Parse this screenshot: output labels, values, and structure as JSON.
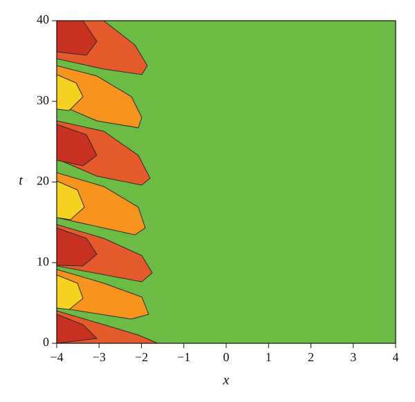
{
  "chart_data": {
    "type": "contour",
    "x_label": "x",
    "y_label": "t",
    "xlim": [
      -4,
      4
    ],
    "ylim": [
      0,
      40
    ],
    "xticks": [
      {
        "value": -4,
        "label": "−4"
      },
      {
        "value": -3,
        "label": "−3"
      },
      {
        "value": -2,
        "label": "−2"
      },
      {
        "value": -1,
        "label": "−1"
      },
      0,
      1,
      2,
      3,
      4
    ],
    "yticks": [
      0,
      10,
      20,
      30,
      40
    ],
    "color": "#6cbb45"
  }
}
